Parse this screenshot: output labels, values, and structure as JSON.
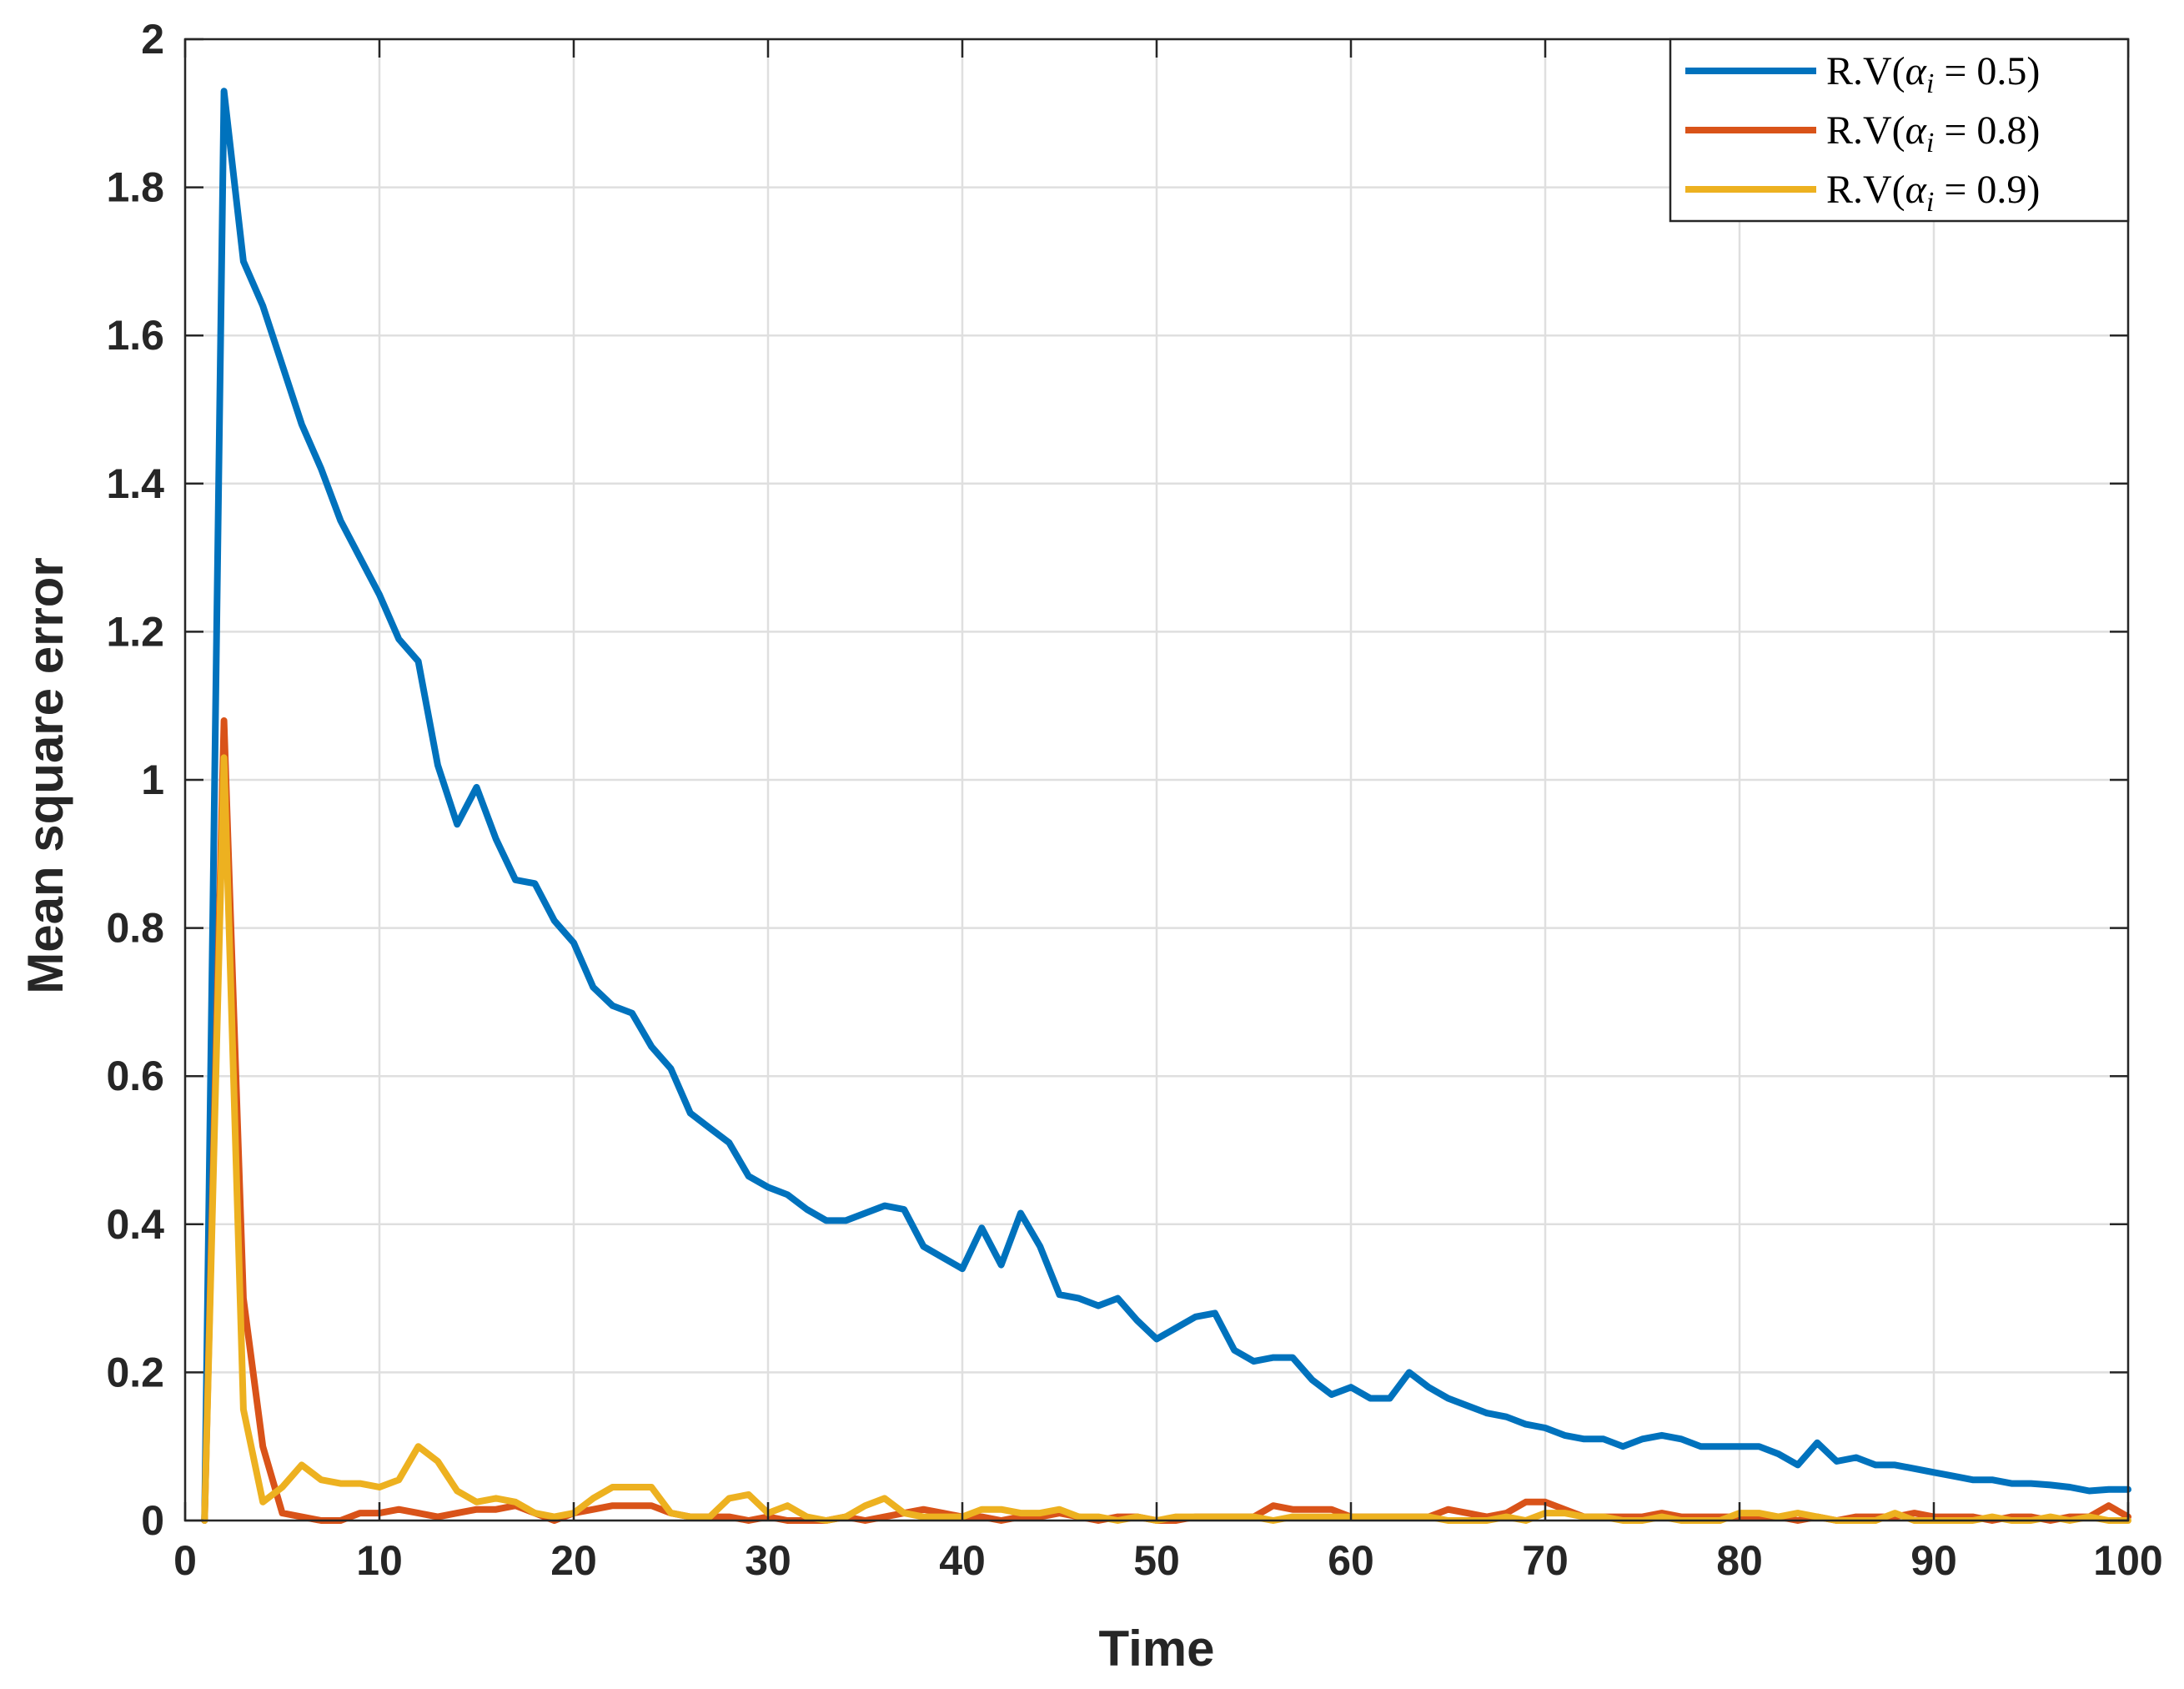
{
  "chart_data": {
    "type": "line",
    "title": "",
    "xlabel": "Time",
    "ylabel": "Mean square error",
    "xlim": [
      0,
      100
    ],
    "ylim": [
      0,
      2
    ],
    "xticks": [
      0,
      10,
      20,
      30,
      40,
      50,
      60,
      70,
      80,
      90,
      100
    ],
    "xtick_labels": [
      "0",
      "10",
      "20",
      "30",
      "40",
      "50",
      "60",
      "70",
      "80",
      "90",
      "100"
    ],
    "yticks": [
      0,
      0.2,
      0.4,
      0.6,
      0.8,
      1,
      1.2,
      1.4,
      1.6,
      1.8,
      2
    ],
    "ytick_labels": [
      "0",
      "0.2",
      "0.4",
      "0.6",
      "0.8",
      "1",
      "1.2",
      "1.4",
      "1.6",
      "1.8",
      "2"
    ],
    "grid": true,
    "legend_position": "top-right",
    "x": [
      1,
      2,
      3,
      4,
      5,
      6,
      7,
      8,
      9,
      10,
      11,
      12,
      13,
      14,
      15,
      16,
      17,
      18,
      19,
      20,
      21,
      22,
      23,
      24,
      25,
      26,
      27,
      28,
      29,
      30,
      31,
      32,
      33,
      34,
      35,
      36,
      37,
      38,
      39,
      40,
      41,
      42,
      43,
      44,
      45,
      46,
      47,
      48,
      49,
      50,
      51,
      52,
      53,
      54,
      55,
      56,
      57,
      58,
      59,
      60,
      61,
      62,
      63,
      64,
      65,
      66,
      67,
      68,
      69,
      70,
      71,
      72,
      73,
      74,
      75,
      76,
      77,
      78,
      79,
      80,
      81,
      82,
      83,
      84,
      85,
      86,
      87,
      88,
      89,
      90,
      91,
      92,
      93,
      94,
      95,
      96,
      97,
      98,
      99,
      100
    ],
    "series": [
      {
        "name": "R.V(αi = 0.5)",
        "legend_prefix": "R.V(",
        "legend_symbol": "α",
        "legend_subscript": "i",
        "legend_suffix": " = 0.5)",
        "color": "#0072BD",
        "values": [
          0.0,
          1.93,
          1.7,
          1.64,
          1.56,
          1.48,
          1.42,
          1.35,
          1.3,
          1.25,
          1.19,
          1.16,
          1.02,
          0.94,
          0.99,
          0.92,
          0.865,
          0.86,
          0.81,
          0.78,
          0.72,
          0.695,
          0.685,
          0.64,
          0.61,
          0.55,
          0.53,
          0.51,
          0.465,
          0.45,
          0.44,
          0.42,
          0.405,
          0.405,
          0.415,
          0.425,
          0.42,
          0.37,
          0.355,
          0.34,
          0.395,
          0.345,
          0.415,
          0.37,
          0.305,
          0.3,
          0.29,
          0.3,
          0.27,
          0.245,
          0.26,
          0.275,
          0.28,
          0.23,
          0.215,
          0.22,
          0.22,
          0.19,
          0.17,
          0.18,
          0.165,
          0.165,
          0.2,
          0.18,
          0.165,
          0.155,
          0.145,
          0.14,
          0.13,
          0.125,
          0.115,
          0.11,
          0.11,
          0.1,
          0.11,
          0.115,
          0.11,
          0.1,
          0.1,
          0.1,
          0.1,
          0.09,
          0.075,
          0.105,
          0.08,
          0.085,
          0.075,
          0.075,
          0.07,
          0.065,
          0.06,
          0.055,
          0.055,
          0.05,
          0.05,
          0.048,
          0.045,
          0.04,
          0.042,
          0.042
        ]
      },
      {
        "name": "R.V(αi = 0.8)",
        "legend_prefix": "R.V(",
        "legend_symbol": "α",
        "legend_subscript": "i",
        "legend_suffix": " = 0.8)",
        "color": "#D95319",
        "values": [
          0.0,
          1.08,
          0.3,
          0.1,
          0.01,
          0.005,
          0.0,
          0.0,
          0.01,
          0.01,
          0.015,
          0.01,
          0.005,
          0.01,
          0.015,
          0.015,
          0.02,
          0.01,
          0.0,
          0.01,
          0.015,
          0.02,
          0.02,
          0.02,
          0.01,
          0.005,
          0.005,
          0.005,
          0.0,
          0.005,
          0.0,
          0.0,
          0.0,
          0.005,
          0.0,
          0.005,
          0.01,
          0.015,
          0.01,
          0.005,
          0.005,
          0.0,
          0.005,
          0.005,
          0.01,
          0.005,
          0.0,
          0.005,
          0.005,
          0.0,
          0.0,
          0.005,
          0.005,
          0.005,
          0.005,
          0.02,
          0.015,
          0.015,
          0.015,
          0.005,
          0.005,
          0.005,
          0.005,
          0.005,
          0.015,
          0.01,
          0.005,
          0.01,
          0.025,
          0.025,
          0.015,
          0.005,
          0.005,
          0.005,
          0.005,
          0.01,
          0.005,
          0.005,
          0.005,
          0.005,
          0.005,
          0.005,
          0.0,
          0.005,
          0.0,
          0.005,
          0.005,
          0.005,
          0.01,
          0.005,
          0.005,
          0.005,
          0.0,
          0.005,
          0.005,
          0.0,
          0.005,
          0.005,
          0.02,
          0.005
        ]
      },
      {
        "name": "R.V(αi = 0.9)",
        "legend_prefix": "R.V(",
        "legend_symbol": "α",
        "legend_subscript": "i",
        "legend_suffix": " = 0.9)",
        "color": "#EDB120",
        "values": [
          0.0,
          1.03,
          0.15,
          0.025,
          0.045,
          0.075,
          0.055,
          0.05,
          0.05,
          0.045,
          0.055,
          0.1,
          0.08,
          0.04,
          0.025,
          0.03,
          0.025,
          0.01,
          0.005,
          0.01,
          0.03,
          0.045,
          0.045,
          0.045,
          0.01,
          0.005,
          0.005,
          0.03,
          0.035,
          0.01,
          0.02,
          0.005,
          0.0,
          0.005,
          0.02,
          0.03,
          0.01,
          0.005,
          0.005,
          0.005,
          0.015,
          0.015,
          0.01,
          0.01,
          0.015,
          0.005,
          0.005,
          0.0,
          0.005,
          0.0,
          0.005,
          0.005,
          0.005,
          0.005,
          0.005,
          0.0,
          0.005,
          0.005,
          0.005,
          0.005,
          0.005,
          0.005,
          0.005,
          0.005,
          0.0,
          0.0,
          0.0,
          0.005,
          0.0,
          0.01,
          0.01,
          0.005,
          0.005,
          0.0,
          0.0,
          0.005,
          0.0,
          0.0,
          0.0,
          0.01,
          0.01,
          0.005,
          0.01,
          0.005,
          0.0,
          0.0,
          0.0,
          0.01,
          0.0,
          0.0,
          0.0,
          0.0,
          0.005,
          0.0,
          0.0,
          0.005,
          0.0,
          0.005,
          0.0,
          0.0
        ]
      }
    ]
  }
}
